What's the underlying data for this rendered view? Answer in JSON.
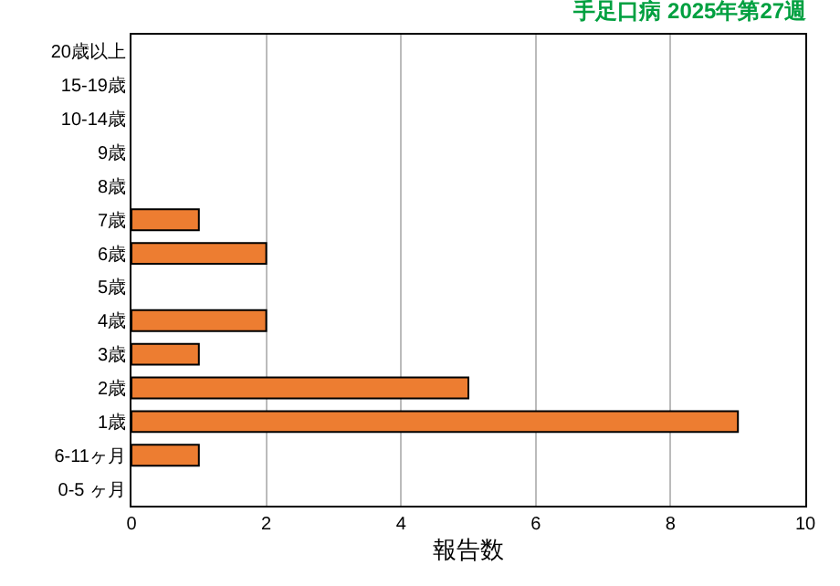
{
  "chart_data": {
    "type": "bar",
    "orientation": "horizontal",
    "title": "手足口病 2025年第27週",
    "xlabel": "報告数",
    "categories": [
      "20歳以上",
      "15-19歳",
      "10-14歳",
      "9歳",
      "8歳",
      "7歳",
      "6歳",
      "5歳",
      "4歳",
      "3歳",
      "2歳",
      "1歳",
      "6-11ヶ月",
      "0-5 ヶ月"
    ],
    "values": [
      0,
      0,
      0,
      0,
      0,
      1,
      2,
      0,
      2,
      1,
      5,
      9,
      1,
      0
    ],
    "color": "#ed7d31",
    "xlim": [
      0,
      10
    ],
    "xticks": [
      0,
      2,
      4,
      6,
      8,
      10
    ],
    "grid": "x",
    "legend": false
  }
}
